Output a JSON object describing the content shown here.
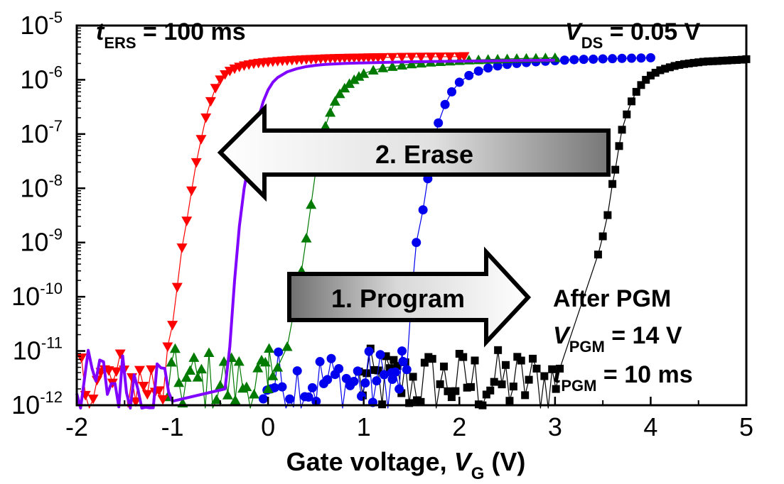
{
  "chart_data": {
    "type": "scatter",
    "x_scale": "linear",
    "y_scale": "log",
    "xlim": [
      -2,
      5
    ],
    "ylim": [
      1e-12,
      1e-05
    ],
    "x_ticks": [
      -2,
      -1,
      0,
      1,
      2,
      3,
      4,
      5
    ],
    "y_ticks": [
      -12,
      -11,
      -10,
      -9,
      -8,
      -7,
      -6,
      -5
    ],
    "xlabel": {
      "main": "Gate voltage, ",
      "var": "V",
      "sub": "G",
      "unit": " (V)"
    },
    "ylabel": "",
    "grid": false,
    "legend": "none",
    "annotations": {
      "t_ers": {
        "var": "t",
        "sub": "ERS",
        "value": " = 100 ms"
      },
      "v_ds": {
        "var": "V",
        "sub": "DS",
        "value": " = 0.05 V"
      },
      "erase_arrow": "2. Erase",
      "program_arrow": "1. Program",
      "after_pgm": "After PGM",
      "v_pgm": {
        "var": "V",
        "sub": "PGM",
        "value": " = 14 V"
      },
      "t_pgm": {
        "var": "t",
        "sub": "PGM",
        "value": " = 10 ms"
      }
    },
    "series": [
      {
        "marker": "square",
        "color": "#000000",
        "noise_range": [
          0.95,
          3.05
        ],
        "points": [
          [
            3.45,
            6e-10
          ],
          [
            3.5,
            1.3e-09
          ],
          [
            3.55,
            3.2e-09
          ],
          [
            3.6,
            1.2e-08
          ],
          [
            3.63,
            2.2e-08
          ],
          [
            3.67,
            6e-08
          ],
          [
            3.7,
            1.2e-07
          ],
          [
            3.75,
            2.3e-07
          ],
          [
            3.8,
            4e-07
          ],
          [
            3.85,
            6e-07
          ],
          [
            3.9,
            8e-07
          ],
          [
            3.95,
            1e-06
          ],
          [
            4.0,
            1.2e-06
          ],
          [
            4.05,
            1.35e-06
          ],
          [
            4.1,
            1.5e-06
          ],
          [
            4.15,
            1.6e-06
          ],
          [
            4.2,
            1.7e-06
          ],
          [
            4.25,
            1.8e-06
          ],
          [
            4.3,
            1.88e-06
          ],
          [
            4.35,
            1.95e-06
          ],
          [
            4.4,
            2e-06
          ],
          [
            4.45,
            2.05e-06
          ],
          [
            4.5,
            2.1e-06
          ],
          [
            4.55,
            2.15e-06
          ],
          [
            4.6,
            2.18e-06
          ],
          [
            4.65,
            2.2e-06
          ],
          [
            4.7,
            2.22e-06
          ],
          [
            4.75,
            2.25e-06
          ],
          [
            4.8,
            2.27e-06
          ],
          [
            4.85,
            2.3e-06
          ],
          [
            4.9,
            2.32e-06
          ],
          [
            4.95,
            2.35e-06
          ],
          [
            5.0,
            2.4e-06
          ]
        ]
      },
      {
        "marker": "circle",
        "color": "#0000ee",
        "noise_range": [
          -0.05,
          1.45
        ],
        "points": [
          [
            1.3,
            3e-12
          ],
          [
            1.4,
            1e-11
          ],
          [
            1.5,
            1e-10
          ],
          [
            1.55,
            1e-09
          ],
          [
            1.62,
            4e-09
          ],
          [
            1.67,
            1.5e-08
          ],
          [
            1.72,
            5e-08
          ],
          [
            1.78,
            1.6e-07
          ],
          [
            1.85,
            3.5e-07
          ],
          [
            1.92,
            6e-07
          ],
          [
            2.0,
            9e-07
          ],
          [
            2.1,
            1.2e-06
          ],
          [
            2.2,
            1.45e-06
          ],
          [
            2.3,
            1.65e-06
          ],
          [
            2.4,
            1.8e-06
          ],
          [
            2.5,
            1.92e-06
          ],
          [
            2.6,
            2e-06
          ],
          [
            2.7,
            2.08e-06
          ],
          [
            2.8,
            2.15e-06
          ],
          [
            2.9,
            2.2e-06
          ],
          [
            3.0,
            2.25e-06
          ],
          [
            3.1,
            2.3e-06
          ],
          [
            3.2,
            2.35e-06
          ],
          [
            3.3,
            2.38e-06
          ],
          [
            3.4,
            2.4e-06
          ],
          [
            3.5,
            2.43e-06
          ],
          [
            3.6,
            2.45e-06
          ],
          [
            3.7,
            2.48e-06
          ],
          [
            3.8,
            2.5e-06
          ],
          [
            3.9,
            2.52e-06
          ],
          [
            4.0,
            2.55e-06
          ]
        ]
      },
      {
        "marker": "triangle-up",
        "color": "#007a00",
        "noise_range": [
          -1.05,
          0.05
        ],
        "points": [
          [
            0.0,
            2e-12
          ],
          [
            0.1,
            5e-12
          ],
          [
            0.2,
            1.2e-11
          ],
          [
            0.3,
            1e-10
          ],
          [
            0.35,
            3e-10
          ],
          [
            0.4,
            1.2e-09
          ],
          [
            0.45,
            5e-09
          ],
          [
            0.5,
            2.2e-08
          ],
          [
            0.55,
            6e-08
          ],
          [
            0.6,
            1.4e-07
          ],
          [
            0.65,
            2.5e-07
          ],
          [
            0.7,
            4e-07
          ],
          [
            0.75,
            5.5e-07
          ],
          [
            0.8,
            7e-07
          ],
          [
            0.85,
            8.5e-07
          ],
          [
            0.9,
            1e-06
          ],
          [
            0.95,
            1.15e-06
          ],
          [
            1.0,
            1.3e-06
          ],
          [
            1.1,
            1.5e-06
          ],
          [
            1.2,
            1.65e-06
          ],
          [
            1.3,
            1.75e-06
          ],
          [
            1.4,
            1.85e-06
          ],
          [
            1.5,
            1.95e-06
          ],
          [
            1.6,
            2.02e-06
          ],
          [
            1.7,
            2.1e-06
          ],
          [
            1.8,
            2.15e-06
          ],
          [
            1.9,
            2.2e-06
          ],
          [
            2.0,
            2.25e-06
          ],
          [
            2.1,
            2.3e-06
          ],
          [
            2.2,
            2.33e-06
          ],
          [
            2.3,
            2.37e-06
          ],
          [
            2.4,
            2.4e-06
          ],
          [
            2.5,
            2.43e-06
          ],
          [
            2.6,
            2.46e-06
          ],
          [
            2.7,
            2.48e-06
          ],
          [
            2.8,
            2.5e-06
          ],
          [
            2.9,
            2.53e-06
          ],
          [
            3.0,
            2.55e-06
          ]
        ]
      },
      {
        "marker": "triangle-down",
        "color": "#ff0000",
        "noise_range": [
          -1.95,
          -1.1
        ],
        "points": [
          [
            -1.05,
            1.2e-11
          ],
          [
            -1.0,
            3e-11
          ],
          [
            -0.95,
            1.5e-10
          ],
          [
            -0.9,
            8e-10
          ],
          [
            -0.85,
            2.5e-09
          ],
          [
            -0.8,
            9e-09
          ],
          [
            -0.75,
            3e-08
          ],
          [
            -0.7,
            8e-08
          ],
          [
            -0.65,
            2e-07
          ],
          [
            -0.6,
            4e-07
          ],
          [
            -0.55,
            7e-07
          ],
          [
            -0.5,
            1e-06
          ],
          [
            -0.45,
            1.25e-06
          ],
          [
            -0.4,
            1.45e-06
          ],
          [
            -0.35,
            1.6e-06
          ],
          [
            -0.3,
            1.72e-06
          ],
          [
            -0.25,
            1.82e-06
          ],
          [
            -0.2,
            1.9e-06
          ],
          [
            -0.15,
            1.97e-06
          ],
          [
            -0.1,
            2.03e-06
          ],
          [
            -0.05,
            2.08e-06
          ],
          [
            0.0,
            2.12e-06
          ],
          [
            0.05,
            2.16e-06
          ],
          [
            0.1,
            2.2e-06
          ],
          [
            0.15,
            2.23e-06
          ],
          [
            0.2,
            2.26e-06
          ],
          [
            0.25,
            2.29e-06
          ],
          [
            0.3,
            2.32e-06
          ],
          [
            0.35,
            2.35e-06
          ],
          [
            0.4,
            2.37e-06
          ],
          [
            0.45,
            2.39e-06
          ],
          [
            0.5,
            2.41e-06
          ],
          [
            0.55,
            2.43e-06
          ],
          [
            0.6,
            2.45e-06
          ],
          [
            0.65,
            2.47e-06
          ],
          [
            0.7,
            2.48e-06
          ],
          [
            0.75,
            2.5e-06
          ],
          [
            0.8,
            2.51e-06
          ],
          [
            0.85,
            2.52e-06
          ],
          [
            0.9,
            2.53e-06
          ],
          [
            0.95,
            2.54e-06
          ],
          [
            1.0,
            2.55e-06
          ],
          [
            1.05,
            2.56e-06
          ],
          [
            1.1,
            2.57e-06
          ],
          [
            1.15,
            2.58e-06
          ],
          [
            1.2,
            2.59e-06
          ],
          [
            1.3,
            2.6e-06
          ],
          [
            1.4,
            2.62e-06
          ],
          [
            1.5,
            2.63e-06
          ],
          [
            1.6,
            2.64e-06
          ],
          [
            1.7,
            2.65e-06
          ],
          [
            1.8,
            2.66e-06
          ],
          [
            1.9,
            2.67e-06
          ],
          [
            2.0,
            2.68e-06
          ],
          [
            2.05,
            2.7e-06
          ]
        ]
      },
      {
        "marker": "line",
        "color": "#8000ff",
        "noise_range": [
          -2.0,
          -1.0
        ],
        "points": [
          [
            -0.45,
            2e-12
          ],
          [
            -0.4,
            1.2e-11
          ],
          [
            -0.35,
            2e-10
          ],
          [
            -0.3,
            2e-09
          ],
          [
            -0.25,
            1e-08
          ],
          [
            -0.2,
            3e-08
          ],
          [
            -0.15,
            8e-08
          ],
          [
            -0.1,
            2e-07
          ],
          [
            -0.05,
            4e-07
          ],
          [
            0.0,
            6.5e-07
          ],
          [
            0.05,
            9e-07
          ],
          [
            0.1,
            1.1e-06
          ],
          [
            0.2,
            1.4e-06
          ],
          [
            0.3,
            1.6e-06
          ],
          [
            0.4,
            1.75e-06
          ],
          [
            0.5,
            1.85e-06
          ],
          [
            0.6,
            1.92e-06
          ],
          [
            0.8,
            2e-06
          ],
          [
            1.0,
            2.05e-06
          ],
          [
            1.5,
            2.15e-06
          ],
          [
            2.0,
            2.2e-06
          ],
          [
            2.5,
            2.25e-06
          ],
          [
            3.0,
            2.3e-06
          ]
        ]
      }
    ]
  }
}
